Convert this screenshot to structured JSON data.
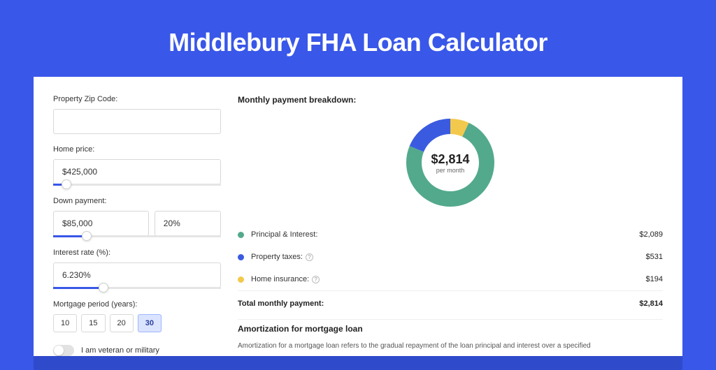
{
  "page": {
    "title": "Middlebury FHA Loan Calculator",
    "background_color": "#3957e8",
    "card_shadow_color": "#2f4acb"
  },
  "form": {
    "zip": {
      "label": "Property Zip Code:",
      "value": ""
    },
    "home_price": {
      "label": "Home price:",
      "value": "$425,000",
      "slider_pct": 8
    },
    "down_payment": {
      "label": "Down payment:",
      "amount": "$85,000",
      "percent": "20%",
      "slider_pct": 20
    },
    "interest_rate": {
      "label": "Interest rate (%):",
      "value": "6.230%",
      "slider_pct": 30
    },
    "mortgage_period": {
      "label": "Mortgage period (years):",
      "options": [
        "10",
        "15",
        "20",
        "30"
      ],
      "selected": "30"
    },
    "veteran": {
      "label": "I am veteran or military",
      "checked": false
    }
  },
  "breakdown": {
    "title": "Monthly payment breakdown:",
    "total_display": "$2,814",
    "total_sub": "per month",
    "items": [
      {
        "label": "Principal & Interest:",
        "value": "$2,089",
        "color": "#53a98c",
        "fraction": 0.742,
        "help": false
      },
      {
        "label": "Property taxes:",
        "value": "$531",
        "color": "#3a5be0",
        "fraction": 0.189,
        "help": true
      },
      {
        "label": "Home insurance:",
        "value": "$194",
        "color": "#f2c94c",
        "fraction": 0.069,
        "help": true
      }
    ],
    "total_label": "Total monthly payment:",
    "total_value": "$2,814"
  },
  "amortization": {
    "title": "Amortization for mortgage loan",
    "text": "Amortization for a mortgage loan refers to the gradual repayment of the loan principal and interest over a specified"
  },
  "donut": {
    "radius": 52,
    "stroke": 22,
    "background": "#ffffff"
  }
}
